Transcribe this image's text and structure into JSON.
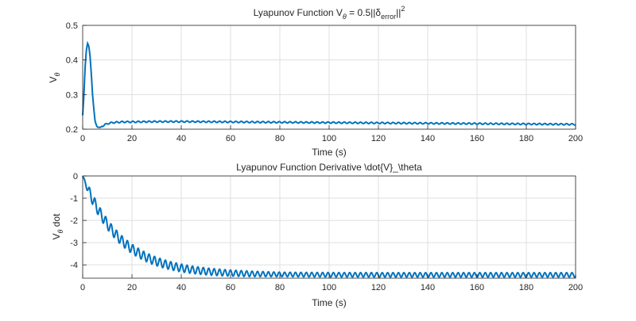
{
  "chart_data": [
    {
      "type": "line",
      "title_parts": {
        "main": "Lyapunov Function V",
        "sub": "θ",
        "mid": " = 0.5||δ",
        "sub2": "error",
        "end": "||",
        "sup": "2"
      },
      "xlabel": "Time (s)",
      "ylabel": "V",
      "ylabel_sub": "θ",
      "xlim": [
        0,
        200
      ],
      "ylim": [
        0.2,
        0.5
      ],
      "xticks": [
        "0",
        "20",
        "40",
        "60",
        "80",
        "100",
        "120",
        "140",
        "160",
        "180",
        "200"
      ],
      "yticks": [
        "0.2",
        "0.3",
        "0.4",
        "0.5"
      ],
      "grid": true,
      "color": "#0072BD",
      "series": [
        {
          "x": [
            0,
            0.5,
            1,
            1.5,
            2,
            2.5,
            3,
            3.5,
            4,
            4.5,
            5,
            5.5,
            6,
            7,
            8,
            9,
            10,
            12,
            14,
            16,
            20,
            30,
            40,
            60,
            80,
            100,
            120,
            140,
            160,
            180,
            200
          ],
          "y": [
            0.24,
            0.3,
            0.38,
            0.43,
            0.448,
            0.44,
            0.41,
            0.36,
            0.3,
            0.26,
            0.225,
            0.212,
            0.206,
            0.205,
            0.209,
            0.213,
            0.216,
            0.219,
            0.22,
            0.221,
            0.221,
            0.222,
            0.222,
            0.221,
            0.22,
            0.219,
            0.218,
            0.217,
            0.216,
            0.215,
            0.214
          ],
          "osc_amp": 0.002,
          "osc_period": 2.2
        }
      ]
    },
    {
      "type": "line",
      "title": "Lyapunov Function Derivative \\dot{V}_\\theta",
      "xlabel": "Time (s)",
      "ylabel": "V",
      "ylabel_sub": "θ",
      "ylabel_suffix": " dot",
      "xlim": [
        0,
        200
      ],
      "ylim": [
        -4.6,
        0
      ],
      "xticks": [
        "0",
        "20",
        "40",
        "60",
        "80",
        "100",
        "120",
        "140",
        "160",
        "180",
        "200"
      ],
      "yticks": [
        "0",
        "-1",
        "-2",
        "-3",
        "-4"
      ],
      "grid": true,
      "color": "#0072BD",
      "series": [
        {
          "trend_formula": "y = -4.45*(1-exp(-t/15))",
          "osc_amp_start": 0.25,
          "osc_amp_end": 0.1,
          "osc_period": 2.2
        }
      ]
    }
  ]
}
